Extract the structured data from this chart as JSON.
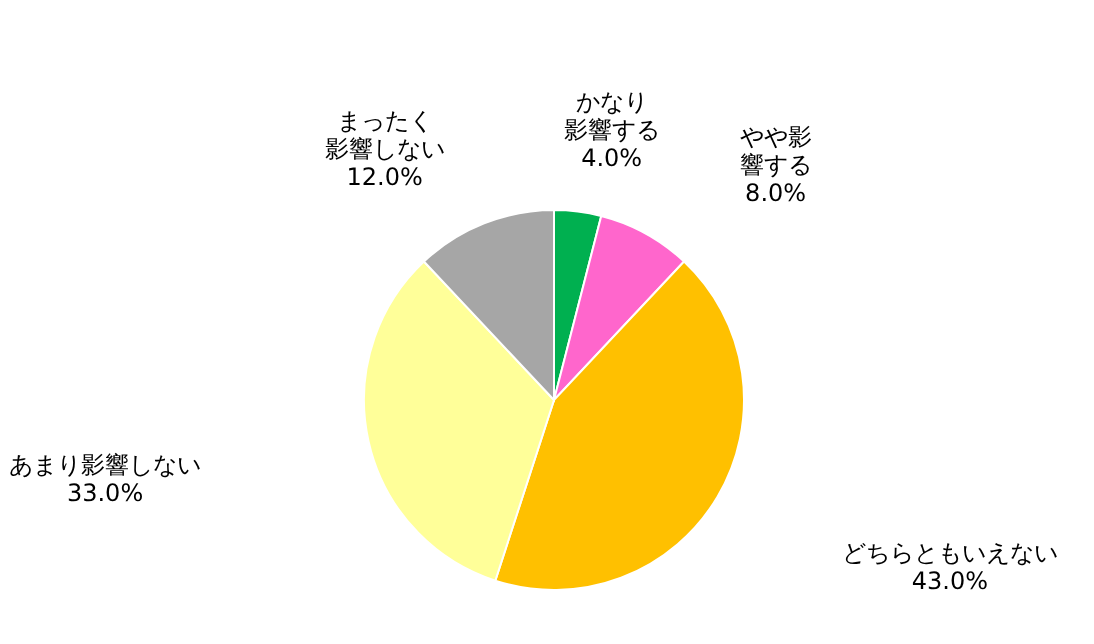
{
  "chart_data": {
    "type": "pie",
    "categories": [
      "かなり影響する",
      "やや影響する",
      "どちらともいえない",
      "あまり影響しない",
      "まったく影響しない"
    ],
    "values": [
      4,
      8,
      43,
      33,
      12
    ],
    "colors": [
      "#00b050",
      "#ff66cc",
      "#ffc000",
      "#ffff99",
      "#a6a6a6"
    ],
    "value_labels": [
      "4.0%",
      "8.0%",
      "43.0%",
      "33.0%",
      "12.0%"
    ]
  }
}
